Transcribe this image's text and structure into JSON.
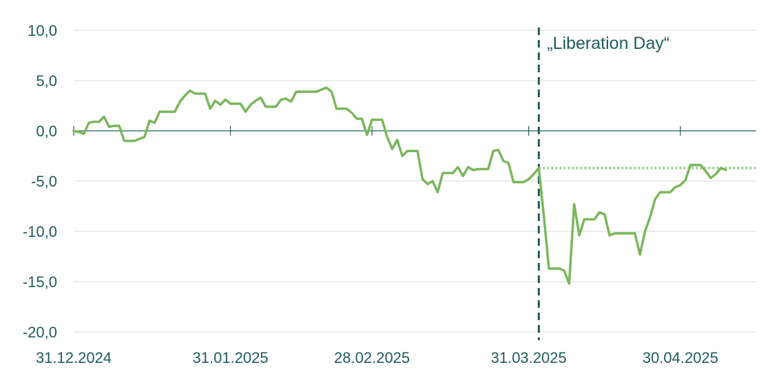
{
  "chart_data": {
    "type": "line",
    "title": "",
    "xlabel": "",
    "ylabel": "",
    "ylim": [
      -20,
      10
    ],
    "yticks": [
      "10,0",
      "5,0",
      "0,0",
      "-5,0",
      "-10,0",
      "-15,0",
      "-20,0"
    ],
    "ytick_values": [
      10,
      5,
      0,
      -5,
      -10,
      -15,
      -20
    ],
    "xlim": [
      "2024-12-31",
      "2025-05-15"
    ],
    "xtick_labels": [
      "31.12.2024",
      "31.01.2025",
      "28.02.2025",
      "31.03.2025",
      "30.04.2025"
    ],
    "xtick_dates": [
      "2024-12-31",
      "2025-01-31",
      "2025-02-28",
      "2025-03-31",
      "2025-04-30"
    ],
    "grid": true,
    "annotation": {
      "text": "„Liberation Day“",
      "date": "2025-04-02",
      "reference_level": -3.7
    },
    "series": [
      {
        "color": "#7ab75c",
        "points": [
          [
            "2024-12-31",
            0.0
          ],
          [
            "2025-01-01",
            -0.1
          ],
          [
            "2025-01-02",
            -0.3
          ],
          [
            "2025-01-03",
            0.8
          ],
          [
            "2025-01-04",
            0.9
          ],
          [
            "2025-01-05",
            0.9
          ],
          [
            "2025-01-06",
            1.4
          ],
          [
            "2025-01-07",
            0.4
          ],
          [
            "2025-01-08",
            0.5
          ],
          [
            "2025-01-09",
            0.5
          ],
          [
            "2025-01-10",
            -1.0
          ],
          [
            "2025-01-11",
            -1.0
          ],
          [
            "2025-01-12",
            -1.0
          ],
          [
            "2025-01-13",
            -0.8
          ],
          [
            "2025-01-14",
            -0.6
          ],
          [
            "2025-01-15",
            1.0
          ],
          [
            "2025-01-16",
            0.8
          ],
          [
            "2025-01-17",
            1.9
          ],
          [
            "2025-01-18",
            1.9
          ],
          [
            "2025-01-19",
            1.9
          ],
          [
            "2025-01-20",
            1.9
          ],
          [
            "2025-01-21",
            2.9
          ],
          [
            "2025-01-22",
            3.5
          ],
          [
            "2025-01-23",
            4.0
          ],
          [
            "2025-01-24",
            3.7
          ],
          [
            "2025-01-25",
            3.7
          ],
          [
            "2025-01-26",
            3.7
          ],
          [
            "2025-01-27",
            2.2
          ],
          [
            "2025-01-28",
            3.0
          ],
          [
            "2025-01-29",
            2.6
          ],
          [
            "2025-01-30",
            3.1
          ],
          [
            "2025-01-31",
            2.7
          ],
          [
            "2025-02-01",
            2.7
          ],
          [
            "2025-02-02",
            2.7
          ],
          [
            "2025-02-03",
            1.9
          ],
          [
            "2025-02-04",
            2.6
          ],
          [
            "2025-02-05",
            3.0
          ],
          [
            "2025-02-06",
            3.3
          ],
          [
            "2025-02-07",
            2.4
          ],
          [
            "2025-02-08",
            2.4
          ],
          [
            "2025-02-09",
            2.4
          ],
          [
            "2025-02-10",
            3.1
          ],
          [
            "2025-02-11",
            3.2
          ],
          [
            "2025-02-12",
            2.9
          ],
          [
            "2025-02-13",
            3.9
          ],
          [
            "2025-02-14",
            3.9
          ],
          [
            "2025-02-15",
            3.9
          ],
          [
            "2025-02-16",
            3.9
          ],
          [
            "2025-02-17",
            3.9
          ],
          [
            "2025-02-18",
            4.1
          ],
          [
            "2025-02-19",
            4.3
          ],
          [
            "2025-02-20",
            3.9
          ],
          [
            "2025-02-21",
            2.2
          ],
          [
            "2025-02-22",
            2.2
          ],
          [
            "2025-02-23",
            2.2
          ],
          [
            "2025-02-24",
            1.8
          ],
          [
            "2025-02-25",
            1.2
          ],
          [
            "2025-02-26",
            1.2
          ],
          [
            "2025-02-27",
            -0.4
          ],
          [
            "2025-02-28",
            1.1
          ],
          [
            "2025-03-01",
            1.1
          ],
          [
            "2025-03-02",
            1.1
          ],
          [
            "2025-03-03",
            -0.6
          ],
          [
            "2025-03-04",
            -1.8
          ],
          [
            "2025-03-05",
            -0.9
          ],
          [
            "2025-03-06",
            -2.5
          ],
          [
            "2025-03-07",
            -2.0
          ],
          [
            "2025-03-08",
            -2.0
          ],
          [
            "2025-03-09",
            -2.0
          ],
          [
            "2025-03-10",
            -4.8
          ],
          [
            "2025-03-11",
            -5.3
          ],
          [
            "2025-03-12",
            -5.0
          ],
          [
            "2025-03-13",
            -6.1
          ],
          [
            "2025-03-14",
            -4.2
          ],
          [
            "2025-03-15",
            -4.2
          ],
          [
            "2025-03-16",
            -4.2
          ],
          [
            "2025-03-17",
            -3.6
          ],
          [
            "2025-03-18",
            -4.5
          ],
          [
            "2025-03-19",
            -3.6
          ],
          [
            "2025-03-20",
            -3.9
          ],
          [
            "2025-03-21",
            -3.8
          ],
          [
            "2025-03-22",
            -3.8
          ],
          [
            "2025-03-23",
            -3.8
          ],
          [
            "2025-03-24",
            -2.0
          ],
          [
            "2025-03-25",
            -1.9
          ],
          [
            "2025-03-26",
            -3.0
          ],
          [
            "2025-03-27",
            -3.2
          ],
          [
            "2025-03-28",
            -5.1
          ],
          [
            "2025-03-29",
            -5.1
          ],
          [
            "2025-03-30",
            -5.1
          ],
          [
            "2025-03-31",
            -4.8
          ],
          [
            "2025-04-01",
            -4.3
          ],
          [
            "2025-04-02",
            -3.7
          ],
          [
            "2025-04-03",
            -8.5
          ],
          [
            "2025-04-04",
            -13.7
          ],
          [
            "2025-04-05",
            -13.7
          ],
          [
            "2025-04-06",
            -13.7
          ],
          [
            "2025-04-07",
            -13.9
          ],
          [
            "2025-04-08",
            -15.2
          ],
          [
            "2025-04-09",
            -7.3
          ],
          [
            "2025-04-10",
            -10.4
          ],
          [
            "2025-04-11",
            -8.8
          ],
          [
            "2025-04-12",
            -8.8
          ],
          [
            "2025-04-13",
            -8.8
          ],
          [
            "2025-04-14",
            -8.1
          ],
          [
            "2025-04-15",
            -8.3
          ],
          [
            "2025-04-16",
            -10.4
          ],
          [
            "2025-04-17",
            -10.2
          ],
          [
            "2025-04-18",
            -10.2
          ],
          [
            "2025-04-19",
            -10.2
          ],
          [
            "2025-04-20",
            -10.2
          ],
          [
            "2025-04-21",
            -10.2
          ],
          [
            "2025-04-22",
            -12.3
          ],
          [
            "2025-04-23",
            -10.0
          ],
          [
            "2025-04-24",
            -8.6
          ],
          [
            "2025-04-25",
            -6.8
          ],
          [
            "2025-04-26",
            -6.1
          ],
          [
            "2025-04-27",
            -6.1
          ],
          [
            "2025-04-28",
            -6.1
          ],
          [
            "2025-04-29",
            -5.6
          ],
          [
            "2025-04-30",
            -5.4
          ],
          [
            "2025-05-01",
            -4.9
          ],
          [
            "2025-05-02",
            -3.4
          ],
          [
            "2025-05-03",
            -3.4
          ],
          [
            "2025-05-04",
            -3.4
          ],
          [
            "2025-05-05",
            -4.0
          ],
          [
            "2025-05-06",
            -4.7
          ],
          [
            "2025-05-07",
            -4.3
          ],
          [
            "2025-05-08",
            -3.7
          ],
          [
            "2025-05-09",
            -3.9
          ]
        ]
      }
    ]
  }
}
